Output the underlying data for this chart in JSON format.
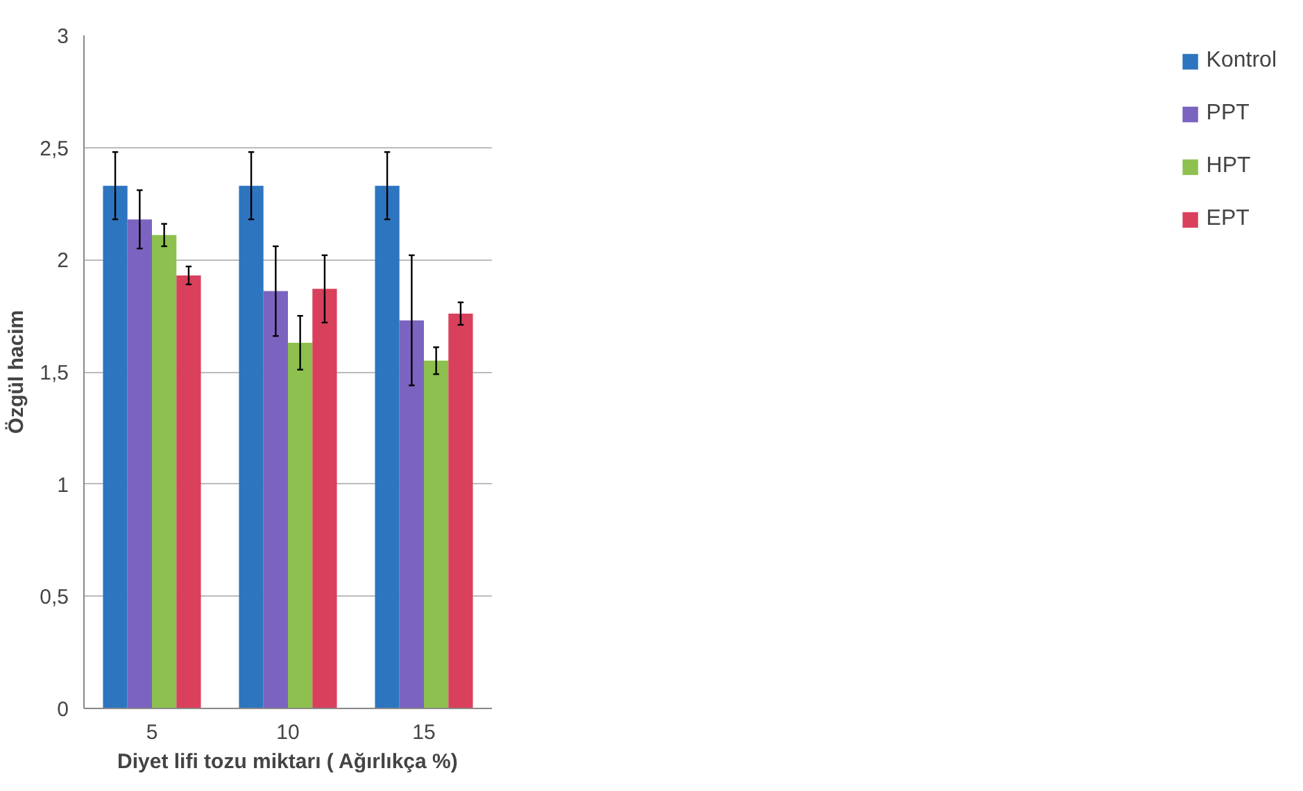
{
  "chart_data": {
    "type": "bar",
    "xlabel": "Diyet lifi tozu miktarı ( Ağırlıkça %)",
    "ylabel": "Özgül hacim",
    "categories": [
      "5",
      "10",
      "15"
    ],
    "series": [
      {
        "name": "Kontrol",
        "color": "#2e75c0",
        "values": [
          2.33,
          2.33,
          2.33
        ],
        "errors": [
          0.15,
          0.15,
          0.15
        ]
      },
      {
        "name": "PPT",
        "color": "#7a64c0",
        "values": [
          2.18,
          1.86,
          1.73
        ],
        "errors": [
          0.13,
          0.2,
          0.29
        ]
      },
      {
        "name": "HPT",
        "color": "#8dc04e",
        "values": [
          2.11,
          1.63,
          1.55
        ],
        "errors": [
          0.05,
          0.12,
          0.06
        ]
      },
      {
        "name": "EPT",
        "color": "#d9405c",
        "values": [
          1.93,
          1.87,
          1.76
        ],
        "errors": [
          0.04,
          0.15,
          0.05
        ]
      }
    ],
    "ylim": [
      0,
      3
    ],
    "yticks": [
      0,
      {
        "value": 0.5,
        "label": "0,5"
      },
      1,
      {
        "value": 1.5,
        "label": "1,5"
      },
      2,
      {
        "value": 2.5,
        "label": "2,5"
      },
      3
    ],
    "grid": "y",
    "legend": "right"
  }
}
